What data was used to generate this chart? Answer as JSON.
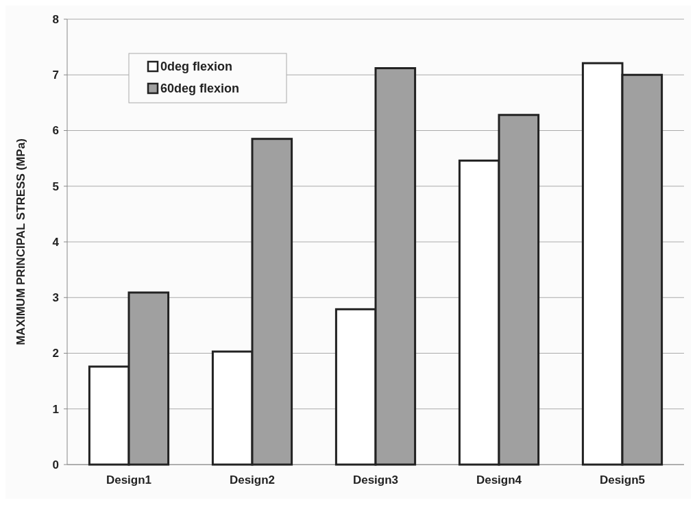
{
  "chart_data": {
    "type": "bar",
    "ylabel": "MAXIMUM PRINCIPAL STRESS (MPa)",
    "categories": [
      "Design1",
      "Design2",
      "Design3",
      "Design4",
      "Design5"
    ],
    "series": [
      {
        "name": "0deg flexion",
        "color": "#ffffff",
        "values": [
          1.76,
          2.03,
          2.79,
          5.46,
          7.21
        ]
      },
      {
        "name": "60deg flexion",
        "color": "#a0a0a0",
        "values": [
          3.09,
          5.85,
          7.12,
          6.28,
          7.0
        ]
      }
    ],
    "ylim": [
      0,
      8
    ],
    "yticks": [
      0,
      1,
      2,
      3,
      4,
      5,
      6,
      7,
      8
    ],
    "grid": "y",
    "legend": "top left"
  }
}
